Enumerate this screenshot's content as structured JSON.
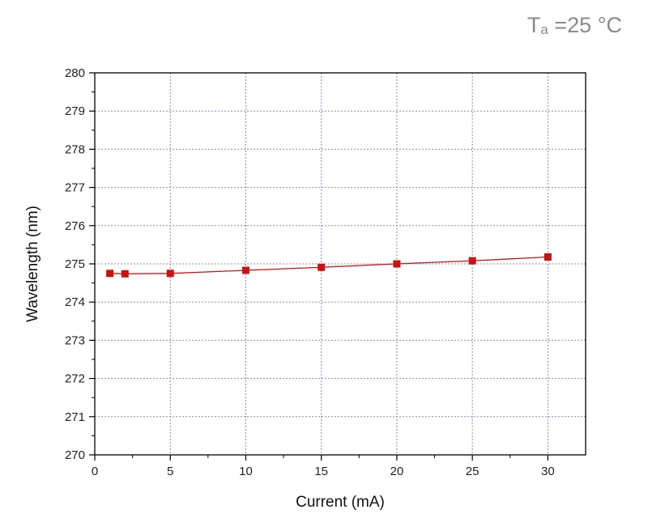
{
  "annotation": {
    "symbol": "T",
    "subscript": "a",
    "value": " =25 °C"
  },
  "colors": {
    "series": "#cc1111",
    "grid": "#8888cc",
    "axis": "#000000",
    "annotation": "#8a8a8a"
  },
  "chart_data": {
    "type": "line",
    "title": "",
    "xlabel": "Current (mA)",
    "ylabel": "Wavelength (nm)",
    "xlim": [
      0,
      32.5
    ],
    "ylim": [
      270,
      280
    ],
    "xticks": [
      0,
      5,
      10,
      15,
      20,
      25,
      30
    ],
    "yticks": [
      270,
      271,
      272,
      273,
      274,
      275,
      276,
      277,
      278,
      279,
      280
    ],
    "grid": true,
    "legend": "none",
    "marker": "square",
    "series": [
      {
        "x": [
          1,
          2,
          5,
          10,
          15,
          20,
          25,
          30
        ],
        "y": [
          274.75,
          274.74,
          274.75,
          274.83,
          274.91,
          275.0,
          275.08,
          275.18
        ]
      }
    ]
  }
}
